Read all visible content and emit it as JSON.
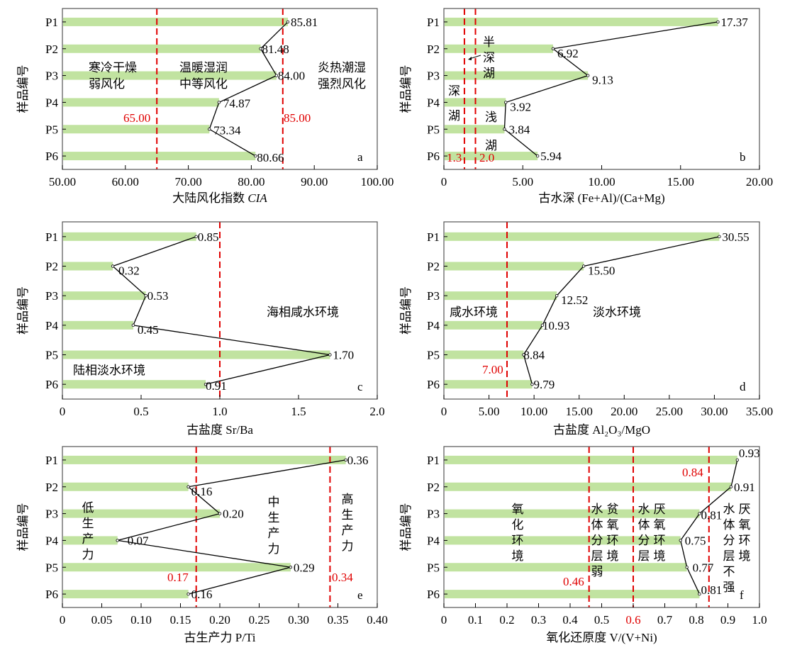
{
  "colors": {
    "bar": "#c1e3a0",
    "threshold": "#e00000",
    "line": "#000000"
  },
  "chart_data": [
    {
      "id": "a",
      "type": "bar",
      "orientation": "horizontal",
      "categories": [
        "P1",
        "P2",
        "P3",
        "P4",
        "P5",
        "P6"
      ],
      "values": [
        85.81,
        81.48,
        84.0,
        74.87,
        73.34,
        80.66
      ],
      "value_labels": [
        "85.81",
        "81.48",
        "84.00",
        "74.87",
        "73.34",
        "80.66"
      ],
      "xlim": [
        50,
        100
      ],
      "xticks": [
        "50.00",
        "60.00",
        "70.00",
        "80.00",
        "90.00",
        "100.00"
      ],
      "xlabel": "大陆风化指数 ",
      "xlabel_italic": "CIA",
      "ylabel": "样品编号",
      "thresholds": [
        65,
        85
      ],
      "threshold_labels": [
        "65.00",
        "85.00"
      ],
      "annotations": [
        "寒冷干燥",
        "弱风化",
        "温暖湿润",
        "中等风化",
        "炎热潮湿",
        "强烈风化"
      ],
      "panel_label": "a"
    },
    {
      "id": "b",
      "type": "bar",
      "orientation": "horizontal",
      "categories": [
        "P1",
        "P2",
        "P3",
        "P4",
        "P5",
        "P6"
      ],
      "values": [
        17.37,
        6.92,
        9.13,
        3.92,
        3.84,
        5.94
      ],
      "value_labels": [
        "17.37",
        "6.92",
        "9.13",
        "3.92",
        "3.84",
        "5.94"
      ],
      "xlim": [
        0,
        20
      ],
      "xticks": [
        "0",
        "5.00",
        "10.00",
        "15.00",
        "20.00"
      ],
      "xlabel": "古水深 (Fe+Al)/(Ca+Mg)",
      "ylabel": "样品编号",
      "thresholds": [
        1.3,
        2.0
      ],
      "threshold_labels": [
        "1.3",
        "2.0"
      ],
      "annotations": [
        "半",
        "深",
        "湖",
        "深",
        "湖",
        "浅",
        "湖"
      ],
      "panel_label": "b"
    },
    {
      "id": "c",
      "type": "bar",
      "orientation": "horizontal",
      "categories": [
        "P1",
        "P2",
        "P3",
        "P4",
        "P5",
        "P6"
      ],
      "values": [
        0.85,
        0.32,
        0.53,
        0.45,
        1.7,
        0.91
      ],
      "value_labels": [
        "0.85",
        "0.32",
        "0.53",
        "0.45",
        "1.70",
        "0.91"
      ],
      "xlim": [
        0,
        2.0
      ],
      "xticks": [
        "0",
        "0.5",
        "1.0",
        "1.5",
        "2.0"
      ],
      "xlabel": "古盐度 Sr/Ba",
      "ylabel": "样品编号",
      "thresholds": [
        1.0
      ],
      "threshold_labels": [],
      "annotations": [
        "海相咸水环境",
        "陆相淡水环境"
      ],
      "panel_label": "c"
    },
    {
      "id": "d",
      "type": "bar",
      "orientation": "horizontal",
      "categories": [
        "P1",
        "P2",
        "P3",
        "P4",
        "P5",
        "P6"
      ],
      "values": [
        30.55,
        15.5,
        12.52,
        10.93,
        8.84,
        9.79
      ],
      "value_labels": [
        "30.55",
        "15.50",
        "12.52",
        "10.93",
        "8.84",
        "9.79"
      ],
      "xlim": [
        0,
        35
      ],
      "xticks": [
        "0",
        "5.00",
        "10.00",
        "15.00",
        "20.00",
        "25.00",
        "30.00",
        "35.00"
      ],
      "xlabel": "古盐度 Al₂O₃/MgO",
      "ylabel": "样品编号",
      "thresholds": [
        7.0
      ],
      "threshold_labels": [
        "7.00"
      ],
      "annotations": [
        "咸水环境",
        "淡水环境"
      ],
      "panel_label": "d"
    },
    {
      "id": "e",
      "type": "bar",
      "orientation": "horizontal",
      "categories": [
        "P1",
        "P2",
        "P3",
        "P4",
        "P5",
        "P6"
      ],
      "values": [
        0.36,
        0.16,
        0.2,
        0.07,
        0.29,
        0.16
      ],
      "value_labels": [
        "0.36",
        "0.16",
        "0.20",
        "0.07",
        "0.29",
        "0.16"
      ],
      "xlim": [
        0,
        0.4
      ],
      "xticks": [
        "0",
        "0.05",
        "0.10",
        "0.15",
        "0.20",
        "0.25",
        "0.30",
        "0.35",
        "0.40"
      ],
      "xlabel": "古生产力 P/Ti",
      "ylabel": "样品编号",
      "thresholds": [
        0.17,
        0.34
      ],
      "threshold_labels": [
        "0.17",
        "0.34"
      ],
      "annotations": [
        "低生产力",
        "中生产力",
        "高生产力"
      ],
      "panel_label": "e"
    },
    {
      "id": "f",
      "type": "bar",
      "orientation": "horizontal",
      "categories": [
        "P1",
        "P2",
        "P3",
        "P4",
        "P5",
        "P6"
      ],
      "values": [
        0.93,
        0.91,
        0.81,
        0.75,
        0.77,
        0.81
      ],
      "value_labels": [
        "0.93",
        "0.91",
        "0.81",
        "0.75",
        "0.77",
        "0.81"
      ],
      "xlim": [
        0,
        1.0
      ],
      "xticks": [
        "0",
        "0.1",
        "0.2",
        "0.3",
        "0.4",
        "0.5",
        "0.6",
        "0.7",
        "0.8",
        "0.9",
        "1.0"
      ],
      "xlabel": "氧化还原度 V/(V+Ni)",
      "ylabel": "样品编号",
      "thresholds": [
        0.46,
        0.6,
        0.84
      ],
      "threshold_labels": [
        "0.46",
        "0.84"
      ],
      "annotations": [
        "氧化环境",
        "水体分层弱",
        "贫氧环境",
        "水体分层",
        "厌氧环境",
        "水体分层不强",
        "厌氧环境"
      ],
      "panel_label": "f"
    }
  ]
}
